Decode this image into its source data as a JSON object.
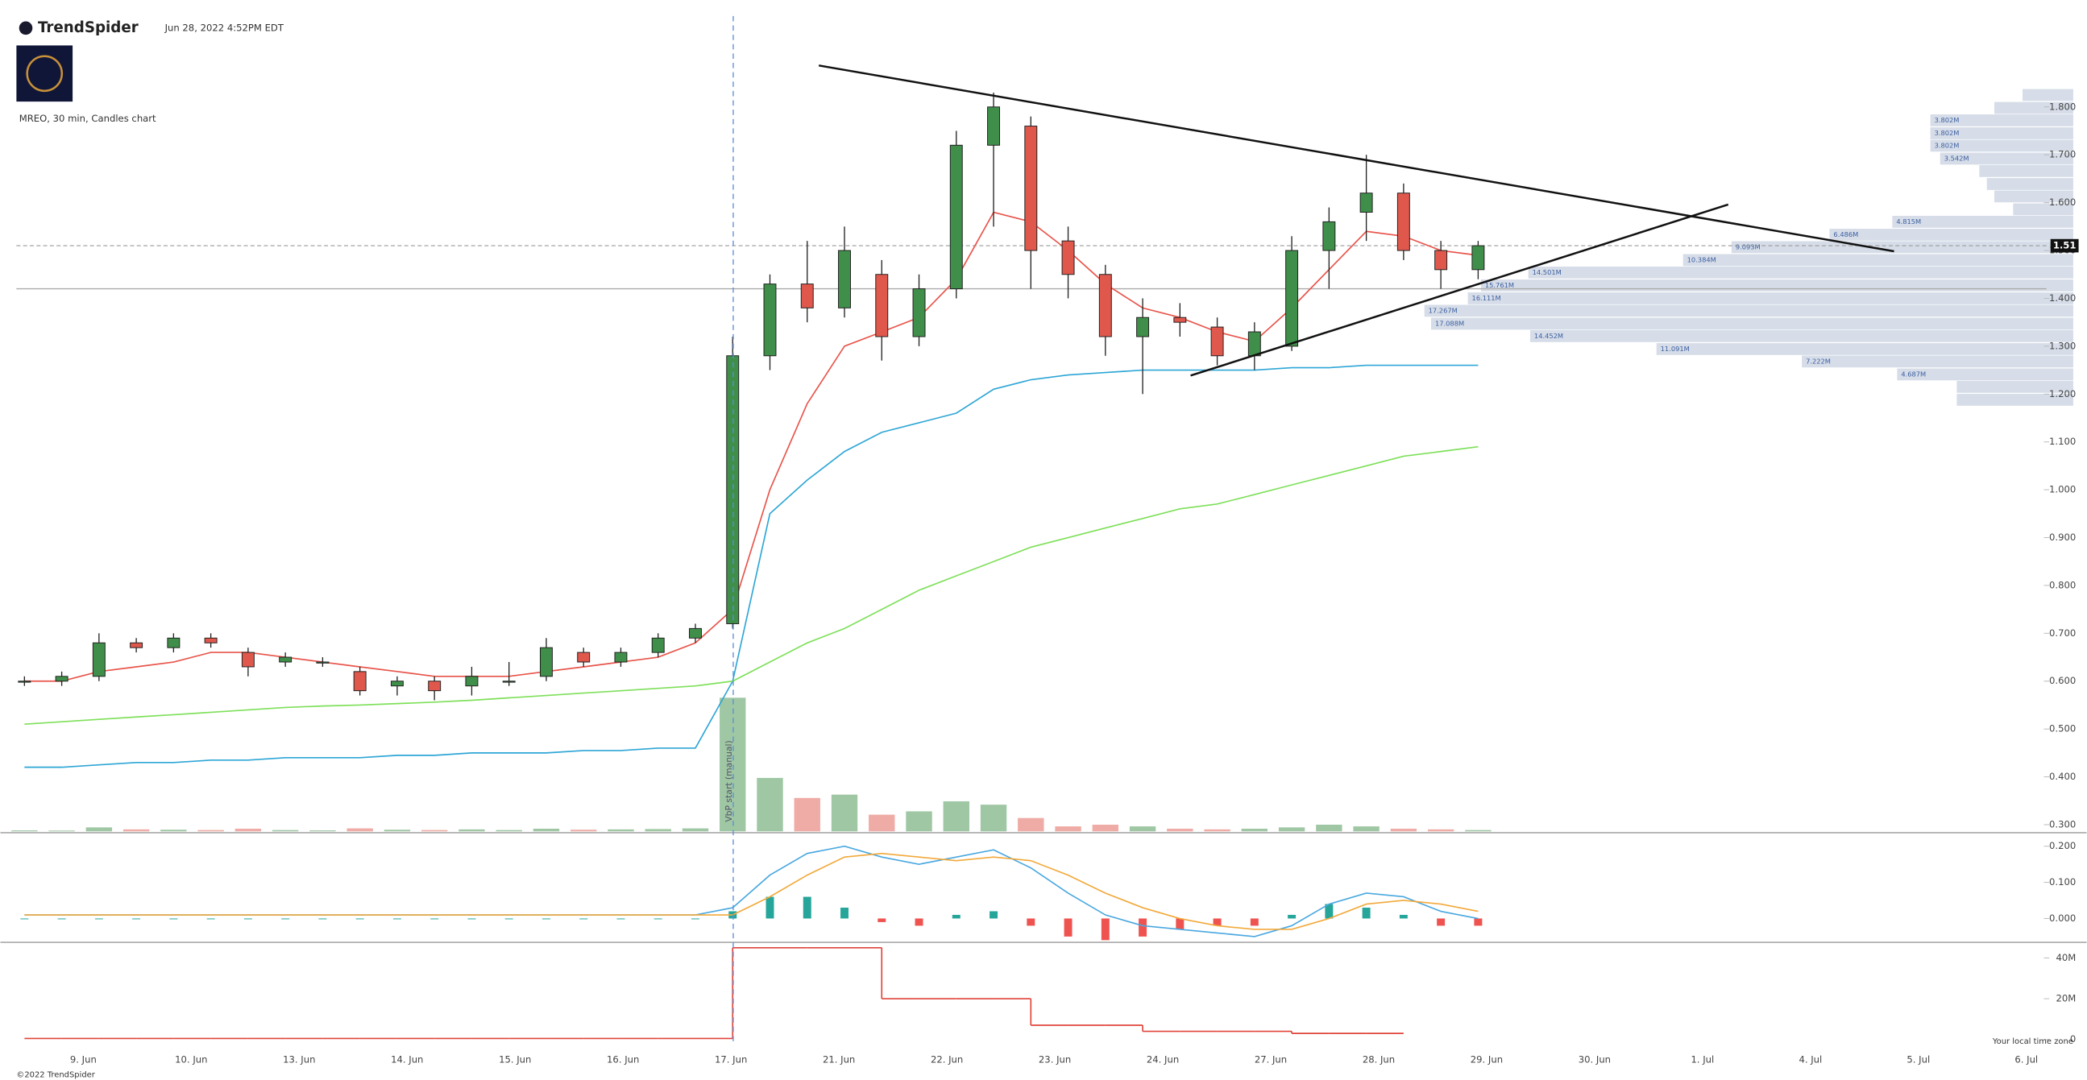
{
  "header": {
    "brand": "TrendSpider",
    "timestamp": "Jun 28, 2022 4:52PM EDT",
    "chart_label": "MREO, 30 min, Candles chart",
    "footer": "©2022 TrendSpider",
    "timezone_note": "Your local time zone",
    "vbp_note": "VbP start (manual)"
  },
  "chart_data": [
    {
      "type": "candlestick",
      "date_labels": [
        "9. Jun",
        "10. Jun",
        "13. Jun",
        "14. Jun",
        "15. Jun",
        "16. Jun",
        "17. Jun",
        "21. Jun",
        "22. Jun",
        "23. Jun",
        "24. Jun",
        "27. Jun",
        "28. Jun",
        "29. Jun",
        "30. Jun",
        "1. Jul",
        "4. Jul",
        "5. Jul",
        "6. Jul"
      ],
      "open": [
        0.6,
        0.6,
        0.61,
        0.68,
        0.67,
        0.69,
        0.66,
        0.64,
        0.64,
        0.62,
        0.59,
        0.6,
        0.59,
        0.6,
        0.61,
        0.66,
        0.64,
        0.66,
        0.69,
        0.72,
        1.28,
        1.43,
        1.38,
        1.45,
        1.32,
        1.42,
        1.72,
        1.76,
        1.52,
        1.45,
        1.32,
        1.36,
        1.34,
        1.28,
        1.3,
        1.5,
        1.58,
        1.62,
        1.5,
        1.46
      ],
      "high": [
        0.61,
        0.62,
        0.7,
        0.69,
        0.7,
        0.7,
        0.67,
        0.66,
        0.65,
        0.63,
        0.61,
        0.61,
        0.63,
        0.64,
        0.69,
        0.67,
        0.67,
        0.7,
        0.72,
        1.32,
        1.45,
        1.52,
        1.55,
        1.48,
        1.45,
        1.75,
        1.83,
        1.78,
        1.55,
        1.47,
        1.4,
        1.39,
        1.36,
        1.35,
        1.53,
        1.59,
        1.7,
        1.64,
        1.52,
        1.52
      ],
      "low": [
        0.59,
        0.59,
        0.6,
        0.66,
        0.66,
        0.67,
        0.61,
        0.63,
        0.63,
        0.57,
        0.57,
        0.56,
        0.57,
        0.59,
        0.6,
        0.63,
        0.63,
        0.65,
        0.68,
        0.71,
        1.25,
        1.35,
        1.36,
        1.27,
        1.3,
        1.4,
        1.55,
        1.42,
        1.4,
        1.28,
        1.2,
        1.32,
        1.26,
        1.25,
        1.29,
        1.42,
        1.52,
        1.48,
        1.42,
        1.44
      ],
      "close": [
        0.6,
        0.61,
        0.68,
        0.67,
        0.69,
        0.68,
        0.63,
        0.65,
        0.64,
        0.58,
        0.6,
        0.58,
        0.61,
        0.6,
        0.67,
        0.64,
        0.66,
        0.69,
        0.71,
        1.28,
        1.43,
        1.38,
        1.5,
        1.32,
        1.42,
        1.72,
        1.8,
        1.5,
        1.45,
        1.32,
        1.36,
        1.35,
        1.28,
        1.33,
        1.5,
        1.56,
        1.62,
        1.5,
        1.46,
        1.51
      ],
      "up_color": "#3f8f4a",
      "down_color": "#e0584c",
      "overlays": [
        {
          "color": "#e8544a",
          "values": [
            0.6,
            0.6,
            0.62,
            0.63,
            0.64,
            0.66,
            0.66,
            0.65,
            0.64,
            0.63,
            0.62,
            0.61,
            0.61,
            0.61,
            0.62,
            0.63,
            0.64,
            0.65,
            0.68,
            0.75,
            1.0,
            1.18,
            1.3,
            1.33,
            1.36,
            1.44,
            1.58,
            1.56,
            1.5,
            1.43,
            1.38,
            1.36,
            1.33,
            1.31,
            1.38,
            1.46,
            1.54,
            1.53,
            1.5,
            1.49
          ]
        },
        {
          "color": "#2ea6d6",
          "values": [
            0.42,
            0.42,
            0.425,
            0.43,
            0.43,
            0.435,
            0.435,
            0.44,
            0.44,
            0.44,
            0.445,
            0.445,
            0.45,
            0.45,
            0.45,
            0.455,
            0.455,
            0.46,
            0.46,
            0.6,
            0.95,
            1.02,
            1.08,
            1.12,
            1.14,
            1.16,
            1.21,
            1.23,
            1.24,
            1.245,
            1.25,
            1.25,
            1.25,
            1.25,
            1.255,
            1.255,
            1.26,
            1.26,
            1.26,
            1.26
          ]
        },
        {
          "color": "#7ee05a",
          "values": [
            0.51,
            0.515,
            0.52,
            0.525,
            0.53,
            0.535,
            0.54,
            0.545,
            0.548,
            0.55,
            0.553,
            0.556,
            0.56,
            0.565,
            0.57,
            0.575,
            0.58,
            0.585,
            0.59,
            0.6,
            0.64,
            0.68,
            0.71,
            0.75,
            0.79,
            0.82,
            0.85,
            0.88,
            0.9,
            0.92,
            0.94,
            0.96,
            0.97,
            0.99,
            1.01,
            1.03,
            1.05,
            1.07,
            1.08,
            1.09
          ]
        }
      ],
      "volume": [
        30000,
        25000,
        120000,
        60000,
        50000,
        40000,
        80000,
        40000,
        30000,
        90000,
        50000,
        40000,
        60000,
        40000,
        80000,
        50000,
        60000,
        70000,
        90000,
        4000000,
        1600000,
        1000000,
        1100000,
        500000,
        600000,
        900000,
        800000,
        400000,
        150000,
        200000,
        150000,
        80000,
        60000,
        80000,
        120000,
        200000,
        150000,
        80000,
        60000,
        40000
      ],
      "last_price": 1.51,
      "reference_level": 1.42,
      "volume_profile": {
        "color": "#d6dde8",
        "prices": [
          1.825,
          1.798,
          1.772,
          1.745,
          1.719,
          1.692,
          1.666,
          1.639,
          1.613,
          1.586,
          1.56,
          1.533,
          1.507,
          1.48,
          1.454,
          1.427,
          1.4,
          1.374,
          1.347,
          1.321,
          1.294,
          1.268,
          1.241,
          1.215,
          1.188
        ],
        "values": [
          1350000,
          2100000,
          3802000,
          3802000,
          3802000,
          3542000,
          2500000,
          2300000,
          2100000,
          1600000,
          4815000,
          6486000,
          9093000,
          10384000,
          14501000,
          15761000,
          16111000,
          17267000,
          17088000,
          14452000,
          11091000,
          7222000,
          4687000,
          3100000,
          3100000
        ],
        "value_labels": [
          null,
          null,
          "3.802M",
          "3.802M",
          "3.802M",
          "3.542M",
          null,
          null,
          null,
          null,
          "4.815M",
          "6.486M",
          "9.093M",
          "10.384M",
          "14.501M",
          "15.761M",
          "16.111M",
          "17.267M",
          "17.088M",
          "14.452M",
          "11.091M",
          "7.222M",
          "4.687M",
          null,
          null
        ]
      },
      "ylim": [
        0.286,
        1.99
      ],
      "yticks": [
        {
          "value": 1.8,
          "label": "1.800"
        },
        {
          "value": 1.7,
          "label": "1.700"
        },
        {
          "value": 1.6,
          "label": "1.600"
        },
        {
          "value": 1.5,
          "label": "1.500"
        },
        {
          "value": 1.4,
          "label": "1.400"
        },
        {
          "value": 1.3,
          "label": "1.300"
        },
        {
          "value": 1.2,
          "label": "1.200"
        },
        {
          "value": 1.1,
          "label": "1.100"
        },
        {
          "value": 1.0,
          "label": "1.000"
        },
        {
          "value": 0.9,
          "label": "0.900"
        },
        {
          "value": 0.8,
          "label": "0.800"
        },
        {
          "value": 0.7,
          "label": "0.700"
        },
        {
          "value": 0.6,
          "label": "0.600"
        },
        {
          "value": 0.5,
          "label": "0.500"
        },
        {
          "value": 0.4,
          "label": "0.400"
        },
        {
          "value": 0.3,
          "label": "0.300"
        }
      ]
    },
    {
      "type": "macd",
      "macd": {
        "color": "#4aa8e0",
        "values": [
          0.01,
          0.01,
          0.01,
          0.01,
          0.01,
          0.01,
          0.01,
          0.01,
          0.01,
          0.01,
          0.01,
          0.01,
          0.01,
          0.01,
          0.01,
          0.01,
          0.01,
          0.01,
          0.01,
          0.03,
          0.12,
          0.18,
          0.2,
          0.17,
          0.15,
          0.17,
          0.19,
          0.14,
          0.07,
          0.01,
          -0.02,
          -0.03,
          -0.04,
          -0.05,
          -0.02,
          0.04,
          0.07,
          0.06,
          0.02,
          0
        ]
      },
      "signal": {
        "color": "#f2a93b",
        "values": [
          0.01,
          0.01,
          0.01,
          0.01,
          0.01,
          0.01,
          0.01,
          0.01,
          0.01,
          0.01,
          0.01,
          0.01,
          0.01,
          0.01,
          0.01,
          0.01,
          0.01,
          0.01,
          0.01,
          0.01,
          0.06,
          0.12,
          0.17,
          0.18,
          0.17,
          0.16,
          0.17,
          0.16,
          0.12,
          0.07,
          0.03,
          0,
          -0.02,
          -0.03,
          -0.03,
          0,
          0.04,
          0.05,
          0.04,
          0.02
        ]
      },
      "histogram": {
        "up_color": "#26a69a",
        "down_color": "#ef5350",
        "values": [
          0,
          0,
          0,
          0,
          0,
          0,
          0,
          0,
          0,
          0,
          0,
          0,
          0,
          0,
          0,
          0,
          0,
          0,
          0,
          0.02,
          0.06,
          0.06,
          0.03,
          -0.01,
          -0.02,
          0.01,
          0.02,
          -0.02,
          -0.05,
          -0.06,
          -0.05,
          -0.03,
          -0.02,
          -0.02,
          0.01,
          0.04,
          0.03,
          0.01,
          -0.02,
          -0.02
        ]
      },
      "ylim": [
        -0.066,
        0.23
      ],
      "yticks": [
        {
          "value": 0.2,
          "label": "0.200"
        },
        {
          "value": 0.1,
          "label": "0.100"
        },
        {
          "value": 0,
          "label": "0.000"
        }
      ]
    },
    {
      "type": "step",
      "color": "#e0443a",
      "values": [
        500000,
        500000,
        500000,
        500000,
        500000,
        500000,
        500000,
        500000,
        500000,
        500000,
        500000,
        500000,
        500000,
        500000,
        500000,
        500000,
        500000,
        500000,
        500000,
        45000000,
        45000000,
        45000000,
        45000000,
        20000000,
        20000000,
        20000000,
        20000000,
        7000000,
        7000000,
        7000000,
        4000000,
        4000000,
        4000000,
        4000000,
        3000000,
        3000000,
        3000000,
        null,
        null,
        null
      ],
      "ylim": [
        -1500000,
        47000000
      ],
      "yticks": [
        {
          "value": 40000000,
          "label": "40M"
        },
        {
          "value": 20000000,
          "label": "20M"
        },
        0
      ]
    }
  ]
}
